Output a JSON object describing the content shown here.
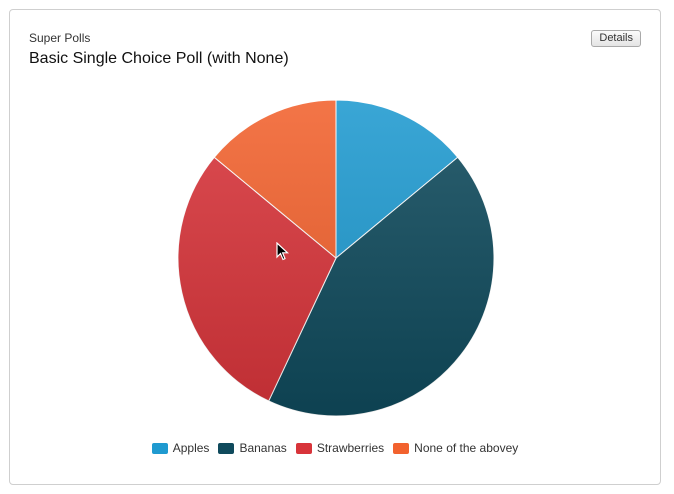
{
  "header": {
    "app_name": "Super Polls",
    "poll_title": "Basic Single Choice Poll (with None)",
    "details_label": "Details"
  },
  "chart_data": {
    "type": "pie",
    "title": "",
    "categories": [
      "Apples",
      "Bananas",
      "Strawberries",
      "None of the abovey"
    ],
    "values": [
      14,
      43,
      29,
      14
    ],
    "colors": [
      "#1f9ad0",
      "#0f4a5c",
      "#d8343a",
      "#f2622e"
    ],
    "start": "top",
    "direction": "clockwise",
    "legend": "bottom-center"
  }
}
